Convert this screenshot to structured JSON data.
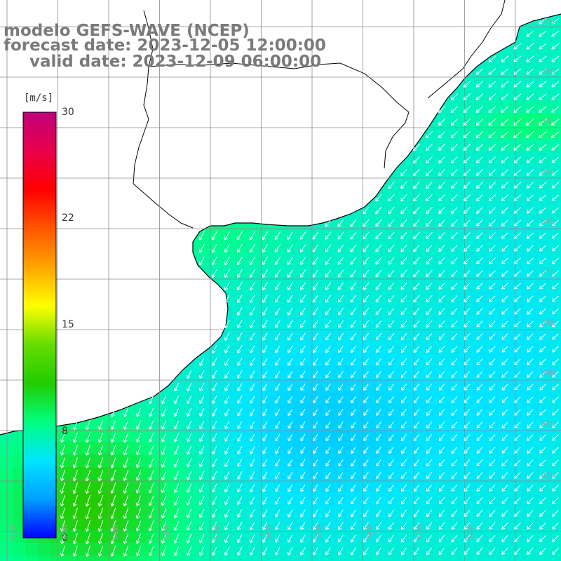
{
  "title": {
    "model": "modelo GEFS-WAVE (NCEP)",
    "forecast": "forecast date: 2023-12-05 12:00:00",
    "valid": "valid date: 2023-12-09 06:00:00"
  },
  "colorbar": {
    "unit": "[m/s]",
    "ticks": [
      "30",
      "22",
      "15",
      "8",
      "0"
    ],
    "tick_values": [
      30,
      22,
      15,
      8,
      0
    ],
    "range": [
      0,
      30
    ],
    "colors": [
      "#0000ff",
      "#00a0ff",
      "#00e5ff",
      "#00ff7f",
      "#22cc00",
      "#66dd00",
      "#ffff00",
      "#ffa500",
      "#ff5500",
      "#ff0000",
      "#e8004a",
      "#c0007a"
    ]
  },
  "map": {
    "variable": "wind speed at 10 m (arrows: direction)",
    "lat_labels": [
      "32S",
      "33S",
      "34S",
      "35S",
      "36S",
      "37S",
      "38S",
      "39S",
      "40S",
      "41S"
    ],
    "lon_labels": [
      "61W",
      "60W",
      "59W",
      "58W",
      "57W",
      "56W",
      "55W",
      "54W",
      "53W",
      "52W"
    ],
    "land_color": "#ffffff",
    "grid_color": "#8c8c8c",
    "coast_color": "#000000",
    "arrow_color": "#ffffff"
  }
}
